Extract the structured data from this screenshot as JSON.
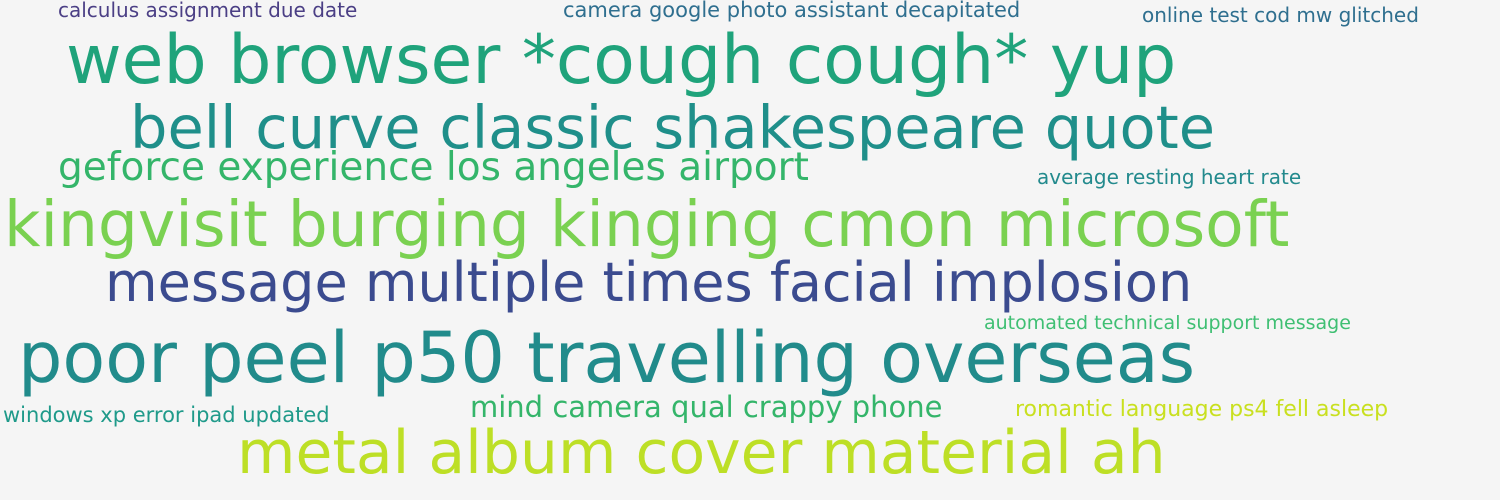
{
  "word_cloud": {
    "words": [
      {
        "text": "calculus assignment due date",
        "color": "#4b3f85"
      },
      {
        "text": "camera google photo assistant decapitated",
        "color": "#2f6f8f"
      },
      {
        "text": "online test cod mw glitched",
        "color": "#2f6f8f"
      },
      {
        "text": "web browser *cough cough* yup",
        "color": "#1fa37b"
      },
      {
        "text": "bell curve classic shakespeare quote",
        "color": "#1f8f8a"
      },
      {
        "text": "geforce experience los angeles airport",
        "color": "#34b56a"
      },
      {
        "text": "average resting heart rate",
        "color": "#238a8d"
      },
      {
        "text": "kingvisit burging kinging cmon microsoft",
        "color": "#7ad151"
      },
      {
        "text": "message multiple times facial implosion",
        "color": "#3b4b8f"
      },
      {
        "text": "automated technical support message",
        "color": "#3fbf73"
      },
      {
        "text": "poor peel p50 travelling overseas",
        "color": "#218b8b"
      },
      {
        "text": "windows xp error ipad updated",
        "color": "#1f9a8a"
      },
      {
        "text": "mind camera qual crappy phone",
        "color": "#34b56a"
      },
      {
        "text": "romantic language ps4 fell asleep",
        "color": "#c9e020"
      },
      {
        "text": "metal album cover material ah",
        "color": "#bddf26"
      }
    ]
  }
}
